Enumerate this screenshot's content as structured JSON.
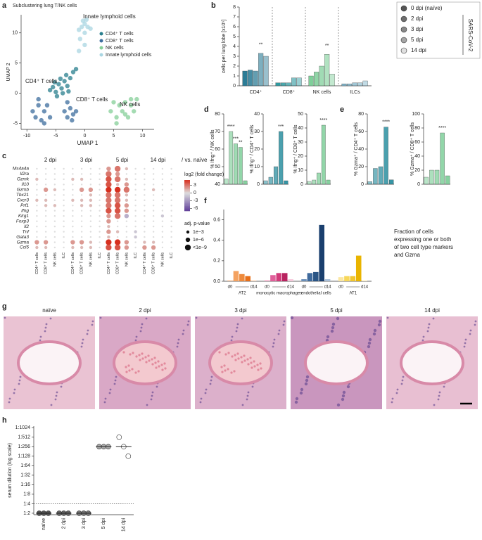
{
  "panel_labels": [
    "a",
    "b",
    "c",
    "d",
    "e",
    "f",
    "g",
    "h"
  ],
  "histology": {
    "panels": [
      "naïve",
      "2 dpi",
      "3 dpi",
      "5 dpi",
      "14 dpi"
    ]
  },
  "chart_data": [
    {
      "type": "scatter",
      "title": "Subclustering lung T/NK cells",
      "xlabel": "UMAP 1",
      "ylabel": "UMAP 2",
      "xlim": [
        -11,
        12
      ],
      "ylim": [
        -6,
        13
      ],
      "xticks": [
        -10,
        -5,
        0,
        5,
        10
      ],
      "yticks": [
        -5,
        0,
        5,
        10
      ],
      "annotations": [
        "Innate lymphoid cells",
        "CD4⁺ T cells",
        "CD8⁺ T cells",
        "NK cells"
      ],
      "series": [
        {
          "name": "CD4⁺ T cells",
          "color": "#2a7f8e",
          "x": [
            -6,
            -5.5,
            -5,
            -4.5,
            -4,
            -3.5,
            -3,
            -2.5,
            -4.8,
            -3.8,
            -5.2,
            -2.8,
            -4.2,
            -3.2,
            -2,
            -1.5
          ],
          "y": [
            0.5,
            1,
            0.2,
            1.5,
            0.8,
            2,
            1.2,
            2.5,
            -0.5,
            0,
            1.8,
            0.3,
            2.4,
            3,
            3.5,
            4
          ]
        },
        {
          "name": "CD8⁺ T cells",
          "color": "#3d6e9e",
          "x": [
            -9,
            -8.5,
            -8,
            -7.5,
            -7,
            -6.5,
            -6,
            -8,
            -7,
            -3.5,
            -3,
            -2.5,
            -2,
            -3,
            -2.2,
            -1.5
          ],
          "y": [
            -3,
            -4,
            -2,
            -4.5,
            -3,
            -2,
            -4,
            -1,
            -5,
            -3,
            -4,
            -2.5,
            -3.5,
            -1.5,
            -4.5,
            -3
          ]
        },
        {
          "name": "NK cells",
          "color": "#86cf98",
          "x": [
            4.5,
            5,
            5.5,
            6,
            6.5,
            7,
            7.5,
            8,
            8.5,
            9,
            5.5,
            7,
            8
          ],
          "y": [
            -3,
            -1.5,
            -4,
            -2,
            -3,
            -1.5,
            -4,
            -2,
            -3,
            -1,
            -5,
            -3.5,
            -1
          ]
        },
        {
          "name": "Innate lymphoid cells",
          "color": "#a9d6e2",
          "x": [
            -1,
            -0.5,
            0,
            0.5,
            1,
            -0.3,
            0.3,
            0,
            -0.8,
            -1,
            0
          ],
          "y": [
            10.5,
            11,
            11.5,
            11,
            10.7,
            12,
            12.2,
            10,
            9,
            7,
            8
          ]
        }
      ]
    },
    {
      "type": "grouped_bar",
      "ylabel": "cells per lung lobe [x10⁵]",
      "categories": [
        "CD4⁺",
        "CD8⁺",
        "NK cells",
        "ILCs"
      ],
      "category_colors": [
        "#2b7c96",
        "#2f9aa0",
        "#7fcf9a",
        "#7fb3c8"
      ],
      "ylim": [
        0,
        8
      ],
      "yticks": [
        0,
        1,
        2,
        3,
        4,
        5,
        6,
        7,
        8
      ],
      "legend_title": "SARS-CoV-2",
      "series": [
        {
          "name": "0 dpi (naïve)",
          "color": "#555555",
          "values": [
            1.5,
            0.3,
            1.0,
            0.2
          ]
        },
        {
          "name": "2 dpi",
          "color": "#6e6e6e",
          "values": [
            1.6,
            0.3,
            1.4,
            0.2
          ]
        },
        {
          "name": "3 dpi",
          "color": "#888888",
          "values": [
            1.5,
            0.3,
            2.0,
            0.3
          ]
        },
        {
          "name": "5 dpi",
          "color": "#a6a6a6",
          "values": [
            3.3,
            0.8,
            3.2,
            0.3
          ],
          "significance": [
            "**",
            null,
            "**",
            null
          ]
        },
        {
          "name": "14 dpi",
          "color": "#e0e0e0",
          "values": [
            3.0,
            0.8,
            1.2,
            0.5
          ]
        }
      ]
    },
    {
      "type": "dotplot",
      "column_groups": [
        "2 dpi",
        "3 dpi",
        "5 dpi",
        "14 dpi"
      ],
      "comparison": "/ vs. naïve",
      "columns": [
        "CD4⁺ T cells",
        "CD8⁺ T cells",
        "NK cells",
        "ILC"
      ],
      "rows": [
        "Ms4a4a",
        "Il2ra",
        "Gzmk",
        "Il10",
        "Gzmb",
        "Tbx21",
        "Cxcr3",
        "Prf1",
        "Ifng",
        "Klrg1",
        "Foxp3",
        "Il2",
        "Tnf",
        "Gata3",
        "Gzma",
        "Ccl5"
      ],
      "colorbar_title": "log2 (fold change)",
      "clim": [
        -7,
        5
      ],
      "cticks": [
        3,
        0,
        -3,
        -6
      ],
      "size_title": "adj. p-value",
      "size_ticks": [
        {
          "value": 3,
          "label": "1e−3"
        },
        {
          "value": 6,
          "label": "1e−6"
        },
        {
          "value": 9,
          "label": "<1e−9"
        }
      ],
      "values": [
        [
          0,
          0,
          0,
          0,
          0,
          0,
          0,
          0,
          2,
          3,
          1,
          0,
          0,
          0,
          0,
          0
        ],
        [
          0,
          0,
          0,
          0,
          0,
          0,
          0,
          0,
          3,
          2,
          0,
          0,
          0,
          0,
          0,
          0
        ],
        [
          1,
          0,
          0,
          0,
          1,
          1,
          0,
          0,
          4,
          3,
          1,
          0,
          0,
          0,
          0,
          0
        ],
        [
          0,
          0,
          0,
          0,
          0,
          0,
          0,
          0,
          4,
          1,
          2,
          0,
          0,
          0,
          0,
          0
        ],
        [
          0,
          2,
          1,
          0,
          0,
          2,
          2,
          0,
          5,
          5,
          3,
          0,
          0,
          1,
          0,
          0
        ],
        [
          0,
          0,
          0,
          0,
          0,
          0,
          1,
          0,
          3,
          3,
          1,
          0,
          0,
          0,
          0,
          0
        ],
        [
          1,
          1,
          0,
          0,
          1,
          1,
          1,
          0,
          3,
          3,
          1,
          0,
          0,
          0,
          0,
          0
        ],
        [
          0,
          1,
          1,
          0,
          0,
          1,
          1,
          0,
          3,
          4,
          2,
          0,
          0,
          0,
          0,
          0
        ],
        [
          0,
          0,
          0,
          0,
          0,
          0,
          0,
          0,
          4,
          4,
          2,
          0,
          0,
          0,
          0,
          0
        ],
        [
          0,
          0,
          0,
          0,
          0,
          0,
          0,
          0,
          2,
          3,
          -2,
          0,
          0,
          0,
          -1,
          0
        ],
        [
          0,
          0,
          0,
          0,
          0,
          0,
          0,
          0,
          2,
          0,
          0,
          0,
          0,
          0,
          0,
          0
        ],
        [
          0,
          0,
          0,
          0,
          0,
          0,
          0,
          0,
          1,
          0,
          0,
          0,
          0,
          0,
          0,
          0
        ],
        [
          0,
          0,
          0,
          0,
          0,
          0,
          0,
          0,
          2,
          1,
          0,
          -1,
          0,
          0,
          0,
          0
        ],
        [
          0,
          0,
          0,
          0,
          0,
          0,
          0,
          0,
          1,
          0,
          0,
          -1,
          0,
          0,
          0,
          0
        ],
        [
          2,
          2,
          0,
          0,
          2,
          2,
          1,
          0,
          5,
          5,
          2,
          0,
          1,
          1,
          0,
          0
        ],
        [
          1,
          1,
          0,
          0,
          1,
          1,
          1,
          0,
          4,
          4,
          2,
          0,
          2,
          2,
          0,
          0
        ]
      ],
      "sizes": [
        [
          0,
          0,
          0,
          0,
          0,
          0,
          0,
          0,
          6,
          9,
          3,
          0,
          0,
          0,
          0,
          0
        ],
        [
          0,
          0,
          0,
          0,
          0,
          0,
          0,
          0,
          9,
          6,
          0,
          0,
          0,
          0,
          0,
          0
        ],
        [
          3,
          0,
          0,
          0,
          3,
          3,
          0,
          0,
          9,
          9,
          3,
          0,
          0,
          0,
          0,
          0
        ],
        [
          0,
          0,
          0,
          0,
          0,
          0,
          0,
          0,
          9,
          3,
          6,
          0,
          0,
          0,
          0,
          0
        ],
        [
          0,
          6,
          3,
          0,
          0,
          6,
          6,
          0,
          9,
          9,
          9,
          0,
          0,
          3,
          0,
          0
        ],
        [
          0,
          0,
          0,
          0,
          0,
          0,
          3,
          0,
          9,
          9,
          3,
          0,
          0,
          0,
          0,
          0
        ],
        [
          3,
          3,
          0,
          0,
          3,
          3,
          3,
          0,
          9,
          9,
          3,
          0,
          0,
          0,
          0,
          0
        ],
        [
          0,
          3,
          3,
          0,
          0,
          3,
          3,
          0,
          9,
          9,
          6,
          0,
          0,
          0,
          0,
          0
        ],
        [
          0,
          0,
          0,
          0,
          0,
          0,
          0,
          0,
          9,
          9,
          6,
          0,
          0,
          0,
          0,
          0
        ],
        [
          0,
          0,
          0,
          0,
          0,
          0,
          0,
          0,
          6,
          9,
          6,
          0,
          0,
          0,
          3,
          0
        ],
        [
          0,
          0,
          0,
          0,
          0,
          0,
          0,
          0,
          6,
          0,
          0,
          0,
          0,
          0,
          0,
          0
        ],
        [
          0,
          0,
          0,
          0,
          0,
          0,
          0,
          0,
          3,
          0,
          0,
          0,
          0,
          0,
          0,
          0
        ],
        [
          0,
          0,
          0,
          0,
          0,
          0,
          0,
          0,
          6,
          3,
          0,
          3,
          0,
          0,
          0,
          0
        ],
        [
          0,
          0,
          0,
          0,
          0,
          0,
          0,
          0,
          3,
          0,
          0,
          3,
          0,
          0,
          0,
          0
        ],
        [
          6,
          6,
          0,
          0,
          6,
          6,
          3,
          0,
          9,
          9,
          6,
          0,
          3,
          3,
          0,
          0
        ],
        [
          3,
          3,
          0,
          0,
          3,
          3,
          3,
          0,
          9,
          9,
          6,
          0,
          6,
          6,
          0,
          0
        ]
      ]
    },
    {
      "type": "bar",
      "ylabel": "% Ifng⁺ / NK cells",
      "color": "#7fcf9a",
      "ylim": [
        40,
        80
      ],
      "yticks": [
        40,
        50,
        60,
        70,
        80
      ],
      "values": [
        43,
        70,
        63,
        61,
        42
      ],
      "significance": [
        null,
        "****",
        "***",
        "**",
        null
      ]
    },
    {
      "type": "bar",
      "ylabel": "% Ifng⁺ / CD4⁺ T cells",
      "color": "#2b8fa0",
      "ylim": [
        0,
        40
      ],
      "yticks": [
        0,
        10,
        20,
        30,
        40
      ],
      "values": [
        2,
        4,
        10,
        30,
        2
      ],
      "significance": [
        null,
        null,
        null,
        "***",
        null
      ]
    },
    {
      "type": "bar",
      "ylabel": "% Ifng⁺ / CD8⁺ T cells",
      "color": "#7fcf9a",
      "ylim": [
        0,
        50
      ],
      "yticks": [
        0,
        10,
        20,
        30,
        40,
        50
      ],
      "values": [
        2,
        3,
        8,
        42,
        3
      ],
      "significance": [
        null,
        null,
        null,
        "****",
        null
      ]
    },
    {
      "type": "bar",
      "ylabel": "% Gzma⁺ / CD4⁺ T cells",
      "color": "#2b8fa0",
      "ylim": [
        0,
        80
      ],
      "yticks": [
        0,
        20,
        40,
        60,
        80
      ],
      "values": [
        3,
        18,
        20,
        65,
        5
      ],
      "significance": [
        null,
        null,
        null,
        "****",
        null
      ]
    },
    {
      "type": "bar",
      "ylabel": "% Gzma⁺ / CD8⁺ T cells",
      "color": "#7fcf9a",
      "ylim": [
        0,
        100
      ],
      "yticks": [
        0,
        20,
        40,
        60,
        80,
        100
      ],
      "values": [
        10,
        20,
        20,
        73,
        12
      ],
      "significance": [
        null,
        null,
        null,
        "****",
        null
      ]
    },
    {
      "type": "grouped_bar",
      "categories": [
        "AT2",
        "monocytic macrophages",
        "endothelial cells",
        "AT1"
      ],
      "category_colors": [
        [
          "#f7c59f",
          "#f4a261",
          "#ee8a3c",
          "#e76f1a",
          "#f9d9bf"
        ],
        [
          "#f2a6c4",
          "#e0609a",
          "#d23a7a",
          "#b8235f",
          "#f5c8da"
        ],
        [
          "#6a8fb8",
          "#3f6a9c",
          "#2a5585",
          "#1a3f6e",
          "#a9bfd8"
        ],
        [
          "#fbe7a1",
          "#f7d75a",
          "#f2c630",
          "#e9b400",
          "#fdf1c6"
        ]
      ],
      "ylim": [
        0,
        0.7
      ],
      "yticks": [
        {
          "value": 0,
          "label": "0.0"
        },
        {
          "value": 0.2,
          "label": "0.2"
        },
        {
          "value": 0.4,
          "label": "0.4"
        },
        {
          "value": 0.6,
          "label": "0.6"
        }
      ],
      "note_lines": [
        "Fraction of cells",
        "expressing one or both",
        "of two cell type markers",
        "and Gzma"
      ],
      "series": [
        {
          "name": "d0",
          "values": [
            0.01,
            0.01,
            0.02,
            0.04
          ]
        },
        {
          "name": null,
          "values": [
            0.1,
            0.06,
            0.08,
            0.05
          ]
        },
        {
          "name": null,
          "values": [
            0.07,
            0.08,
            0.09,
            0.05
          ]
        },
        {
          "name": null,
          "values": [
            0.05,
            0.08,
            0.55,
            0.25
          ]
        },
        {
          "name": "d14",
          "values": [
            0.01,
            0.02,
            0.02,
            0.01
          ]
        }
      ]
    },
    {
      "type": "strip",
      "ylabel": "serum dilution (log scale)",
      "log_scale": true,
      "categories": [
        "naïve",
        "2 dpi",
        "3 dpi",
        "5 dpi",
        "14 dpi"
      ],
      "colors": [
        "#555555",
        "#666666",
        "#777777",
        "#aaaaaa",
        "#ffffff"
      ],
      "values": [
        [
          2,
          2,
          2
        ],
        [
          2,
          2,
          2
        ],
        [
          2,
          2,
          2
        ],
        [
          256,
          256,
          256
        ],
        [
          512,
          256,
          128
        ]
      ],
      "medians": [
        2,
        2,
        2,
        256,
        256
      ],
      "reference_line": 4,
      "ylim": [
        1.8,
        1150
      ],
      "yticks": [
        {
          "value": 2,
          "label": "1:2"
        },
        {
          "value": 4,
          "label": "1:4"
        },
        {
          "value": 8,
          "label": "1:8"
        },
        {
          "value": 16,
          "label": "1:16"
        },
        {
          "value": 32,
          "label": "1:32"
        },
        {
          "value": 64,
          "label": "1:64"
        },
        {
          "value": 128,
          "label": "1:128"
        },
        {
          "value": 256,
          "label": "1:256"
        },
        {
          "value": 512,
          "label": "1:512"
        },
        {
          "value": 1024,
          "label": "1:1024"
        }
      ]
    }
  ]
}
